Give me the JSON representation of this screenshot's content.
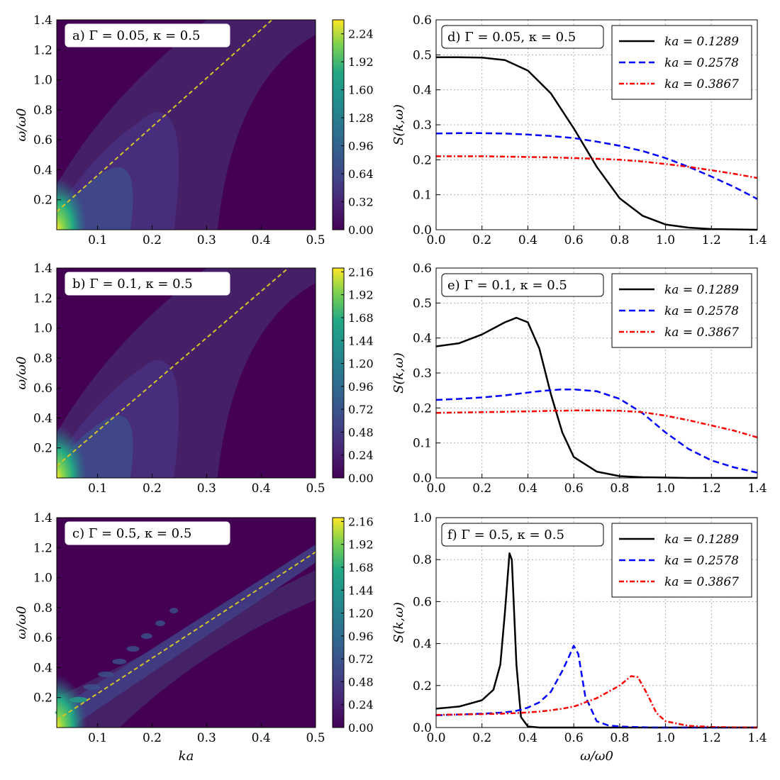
{
  "chart_data": [
    {
      "panel": "a",
      "type": "heatmap",
      "annotation": "a)   Γ = 0.05,  κ = 0.5",
      "xlabel": "",
      "ylabel": "ω/ω0",
      "xlim": [
        0.025,
        0.5
      ],
      "ylim": [
        0.0,
        1.4
      ],
      "xticks": [
        "0.1",
        "0.2",
        "0.3",
        "0.4",
        "0.5"
      ],
      "yticks": [
        "0.2",
        "0.4",
        "0.6",
        "0.8",
        "1.0",
        "1.2",
        "1.4"
      ],
      "colorbar_ticks": [
        "0.00",
        "0.32",
        "0.64",
        "0.96",
        "1.28",
        "1.60",
        "1.92",
        "2.24"
      ],
      "colorbar_range": [
        0.0,
        2.4
      ],
      "colormap": "viridis",
      "dashed_line": {
        "color": "#d4c527",
        "x": [
          0.025,
          0.42
        ],
        "y": [
          0.12,
          1.4
        ]
      },
      "peak": {
        "x": 0.03,
        "y": 0.07,
        "value": 2.3
      }
    },
    {
      "panel": "b",
      "type": "heatmap",
      "annotation": "b)   Γ = 0.1,  κ = 0.5",
      "xlabel": "",
      "ylabel": "ω/ω0",
      "xlim": [
        0.025,
        0.5
      ],
      "ylim": [
        0.0,
        1.4
      ],
      "xticks": [
        "0.1",
        "0.2",
        "0.3",
        "0.4",
        "0.5"
      ],
      "yticks": [
        "0.2",
        "0.4",
        "0.6",
        "0.8",
        "1.0",
        "1.2",
        "1.4"
      ],
      "colorbar_ticks": [
        "0.00",
        "0.24",
        "0.48",
        "0.72",
        "0.96",
        "1.20",
        "1.44",
        "1.68",
        "1.92",
        "2.16"
      ],
      "colorbar_range": [
        0.0,
        2.2
      ],
      "colormap": "viridis",
      "dashed_line": {
        "color": "#d4c527",
        "x": [
          0.025,
          0.45
        ],
        "y": [
          0.08,
          1.4
        ]
      },
      "peak": {
        "x": 0.03,
        "y": 0.07,
        "value": 2.2
      }
    },
    {
      "panel": "c",
      "type": "heatmap",
      "annotation": "c)   Γ = 0.5,  κ = 0.5",
      "xlabel": "ka",
      "ylabel": "ω/ω0",
      "xlim": [
        0.025,
        0.5
      ],
      "ylim": [
        0.0,
        1.4
      ],
      "xticks": [
        "0.1",
        "0.2",
        "0.3",
        "0.4",
        "0.5"
      ],
      "yticks": [
        "0.2",
        "0.4",
        "0.6",
        "0.8",
        "1.0",
        "1.2",
        "1.4"
      ],
      "colorbar_ticks": [
        "0.00",
        "0.24",
        "0.48",
        "0.72",
        "0.96",
        "1.20",
        "1.44",
        "1.68",
        "1.92",
        "2.16"
      ],
      "colorbar_range": [
        0.0,
        2.2
      ],
      "colormap": "viridis",
      "dashed_line": {
        "color": "#d4c527",
        "x": [
          0.025,
          0.5
        ],
        "y": [
          0.05,
          1.17
        ]
      },
      "peak": {
        "x": 0.03,
        "y": 0.07,
        "value": 2.2
      }
    },
    {
      "panel": "d",
      "type": "line",
      "annotation": "d)   Γ = 0.05,  κ = 0.5",
      "xlabel": "",
      "ylabel": "S(k,ω)",
      "xlim": [
        0.0,
        1.4
      ],
      "ylim": [
        0.0,
        0.6
      ],
      "xticks": [
        "0.0",
        "0.2",
        "0.4",
        "0.6",
        "0.8",
        "1.0",
        "1.2",
        "1.4"
      ],
      "yticks": [
        "0.0",
        "0.1",
        "0.2",
        "0.3",
        "0.4",
        "0.5",
        "0.6"
      ],
      "grid": true,
      "legend_position": "top-right",
      "x": [
        0.0,
        0.1,
        0.2,
        0.3,
        0.4,
        0.5,
        0.6,
        0.7,
        0.8,
        0.9,
        1.0,
        1.1,
        1.2,
        1.3,
        1.4
      ],
      "series": [
        {
          "name": "ka = 0.1289",
          "style": "solid",
          "color": "#000000",
          "values": [
            0.493,
            0.493,
            0.492,
            0.485,
            0.455,
            0.39,
            0.29,
            0.18,
            0.09,
            0.04,
            0.015,
            0.006,
            0.002,
            0.001,
            0.0
          ]
        },
        {
          "name": "ka = 0.2578",
          "style": "dashed",
          "color": "#0000ff",
          "values": [
            0.275,
            0.276,
            0.276,
            0.275,
            0.272,
            0.268,
            0.262,
            0.252,
            0.24,
            0.225,
            0.205,
            0.18,
            0.152,
            0.122,
            0.088
          ]
        },
        {
          "name": "ka = 0.3867",
          "style": "dashdot",
          "color": "#ff0000",
          "values": [
            0.21,
            0.21,
            0.21,
            0.209,
            0.208,
            0.207,
            0.205,
            0.203,
            0.2,
            0.195,
            0.188,
            0.18,
            0.17,
            0.16,
            0.148
          ]
        }
      ]
    },
    {
      "panel": "e",
      "type": "line",
      "annotation": "e)   Γ = 0.1,  κ = 0.5",
      "xlabel": "",
      "ylabel": "S(k,ω)",
      "xlim": [
        0.0,
        1.4
      ],
      "ylim": [
        0.0,
        0.6
      ],
      "xticks": [
        "0.0",
        "0.2",
        "0.4",
        "0.6",
        "0.8",
        "1.0",
        "1.2",
        "1.4"
      ],
      "yticks": [
        "0.0",
        "0.1",
        "0.2",
        "0.3",
        "0.4",
        "0.5",
        "0.6"
      ],
      "grid": true,
      "legend_position": "top-right",
      "x": [
        0.0,
        0.1,
        0.2,
        0.3,
        0.35,
        0.4,
        0.45,
        0.5,
        0.55,
        0.6,
        0.7,
        0.8,
        0.9,
        1.0,
        1.1,
        1.2,
        1.3,
        1.4
      ],
      "series": [
        {
          "name": "ka = 0.1289",
          "style": "solid",
          "color": "#000000",
          "values": [
            0.376,
            0.385,
            0.41,
            0.445,
            0.458,
            0.445,
            0.37,
            0.24,
            0.13,
            0.06,
            0.018,
            0.005,
            0.002,
            0.001,
            0.0,
            0.0,
            0.0,
            0.0
          ]
        },
        {
          "name": "ka = 0.2578",
          "style": "dashed",
          "color": "#0000ff",
          "values": [
            0.223,
            0.226,
            0.23,
            0.236,
            0.24,
            0.244,
            0.248,
            0.251,
            0.253,
            0.253,
            0.248,
            0.226,
            0.185,
            0.13,
            0.083,
            0.05,
            0.03,
            0.015
          ]
        },
        {
          "name": "ka = 0.3867",
          "style": "dashdot",
          "color": "#ff0000",
          "values": [
            0.186,
            0.187,
            0.188,
            0.189,
            0.19,
            0.19,
            0.191,
            0.192,
            0.192,
            0.193,
            0.193,
            0.192,
            0.188,
            0.178,
            0.165,
            0.15,
            0.135,
            0.116
          ]
        }
      ]
    },
    {
      "panel": "f",
      "type": "line",
      "annotation": "f)   Γ = 0.5,  κ = 0.5",
      "xlabel": "ω/ω0",
      "ylabel": "S(k,ω)",
      "xlim": [
        0.0,
        1.4
      ],
      "ylim": [
        0.0,
        1.0
      ],
      "xticks": [
        "0.0",
        "0.2",
        "0.4",
        "0.6",
        "0.8",
        "1.0",
        "1.2",
        "1.4"
      ],
      "yticks": [
        "0.0",
        "0.2",
        "0.4",
        "0.6",
        "0.8",
        "1.0"
      ],
      "grid": true,
      "legend_position": "top-right",
      "x": [
        0.0,
        0.1,
        0.2,
        0.25,
        0.28,
        0.3,
        0.32,
        0.33,
        0.35,
        0.37,
        0.4,
        0.45,
        0.5,
        0.55,
        0.58,
        0.6,
        0.62,
        0.65,
        0.7,
        0.75,
        0.8,
        0.85,
        0.88,
        0.92,
        0.96,
        1.0,
        1.1,
        1.2,
        1.3,
        1.4
      ],
      "series": [
        {
          "name": "ka = 0.1289",
          "style": "solid",
          "color": "#000000",
          "values": [
            0.09,
            0.1,
            0.13,
            0.18,
            0.3,
            0.55,
            0.83,
            0.8,
            0.3,
            0.05,
            0.005,
            0.0,
            0.0,
            0.0,
            0.0,
            0.0,
            0.0,
            0.0,
            0.0,
            0.0,
            0.0,
            0.0,
            0.0,
            0.0,
            0.0,
            0.0,
            0.0,
            0.0,
            0.0,
            0.0
          ]
        },
        {
          "name": "ka = 0.2578",
          "style": "dashed",
          "color": "#0000ff",
          "values": [
            0.058,
            0.062,
            0.066,
            0.069,
            0.071,
            0.073,
            0.075,
            0.076,
            0.08,
            0.085,
            0.095,
            0.12,
            0.17,
            0.27,
            0.34,
            0.39,
            0.35,
            0.15,
            0.03,
            0.01,
            0.005,
            0.003,
            0.002,
            0.001,
            0.0,
            0.0,
            0.0,
            0.0,
            0.0,
            0.0
          ]
        },
        {
          "name": "ka = 0.3867",
          "style": "dashdot",
          "color": "#ff0000",
          "values": [
            0.06,
            0.062,
            0.064,
            0.065,
            0.066,
            0.067,
            0.068,
            0.068,
            0.069,
            0.07,
            0.072,
            0.076,
            0.082,
            0.09,
            0.096,
            0.1,
            0.107,
            0.12,
            0.14,
            0.17,
            0.2,
            0.245,
            0.24,
            0.16,
            0.07,
            0.03,
            0.008,
            0.003,
            0.001,
            0.0
          ]
        }
      ]
    }
  ]
}
